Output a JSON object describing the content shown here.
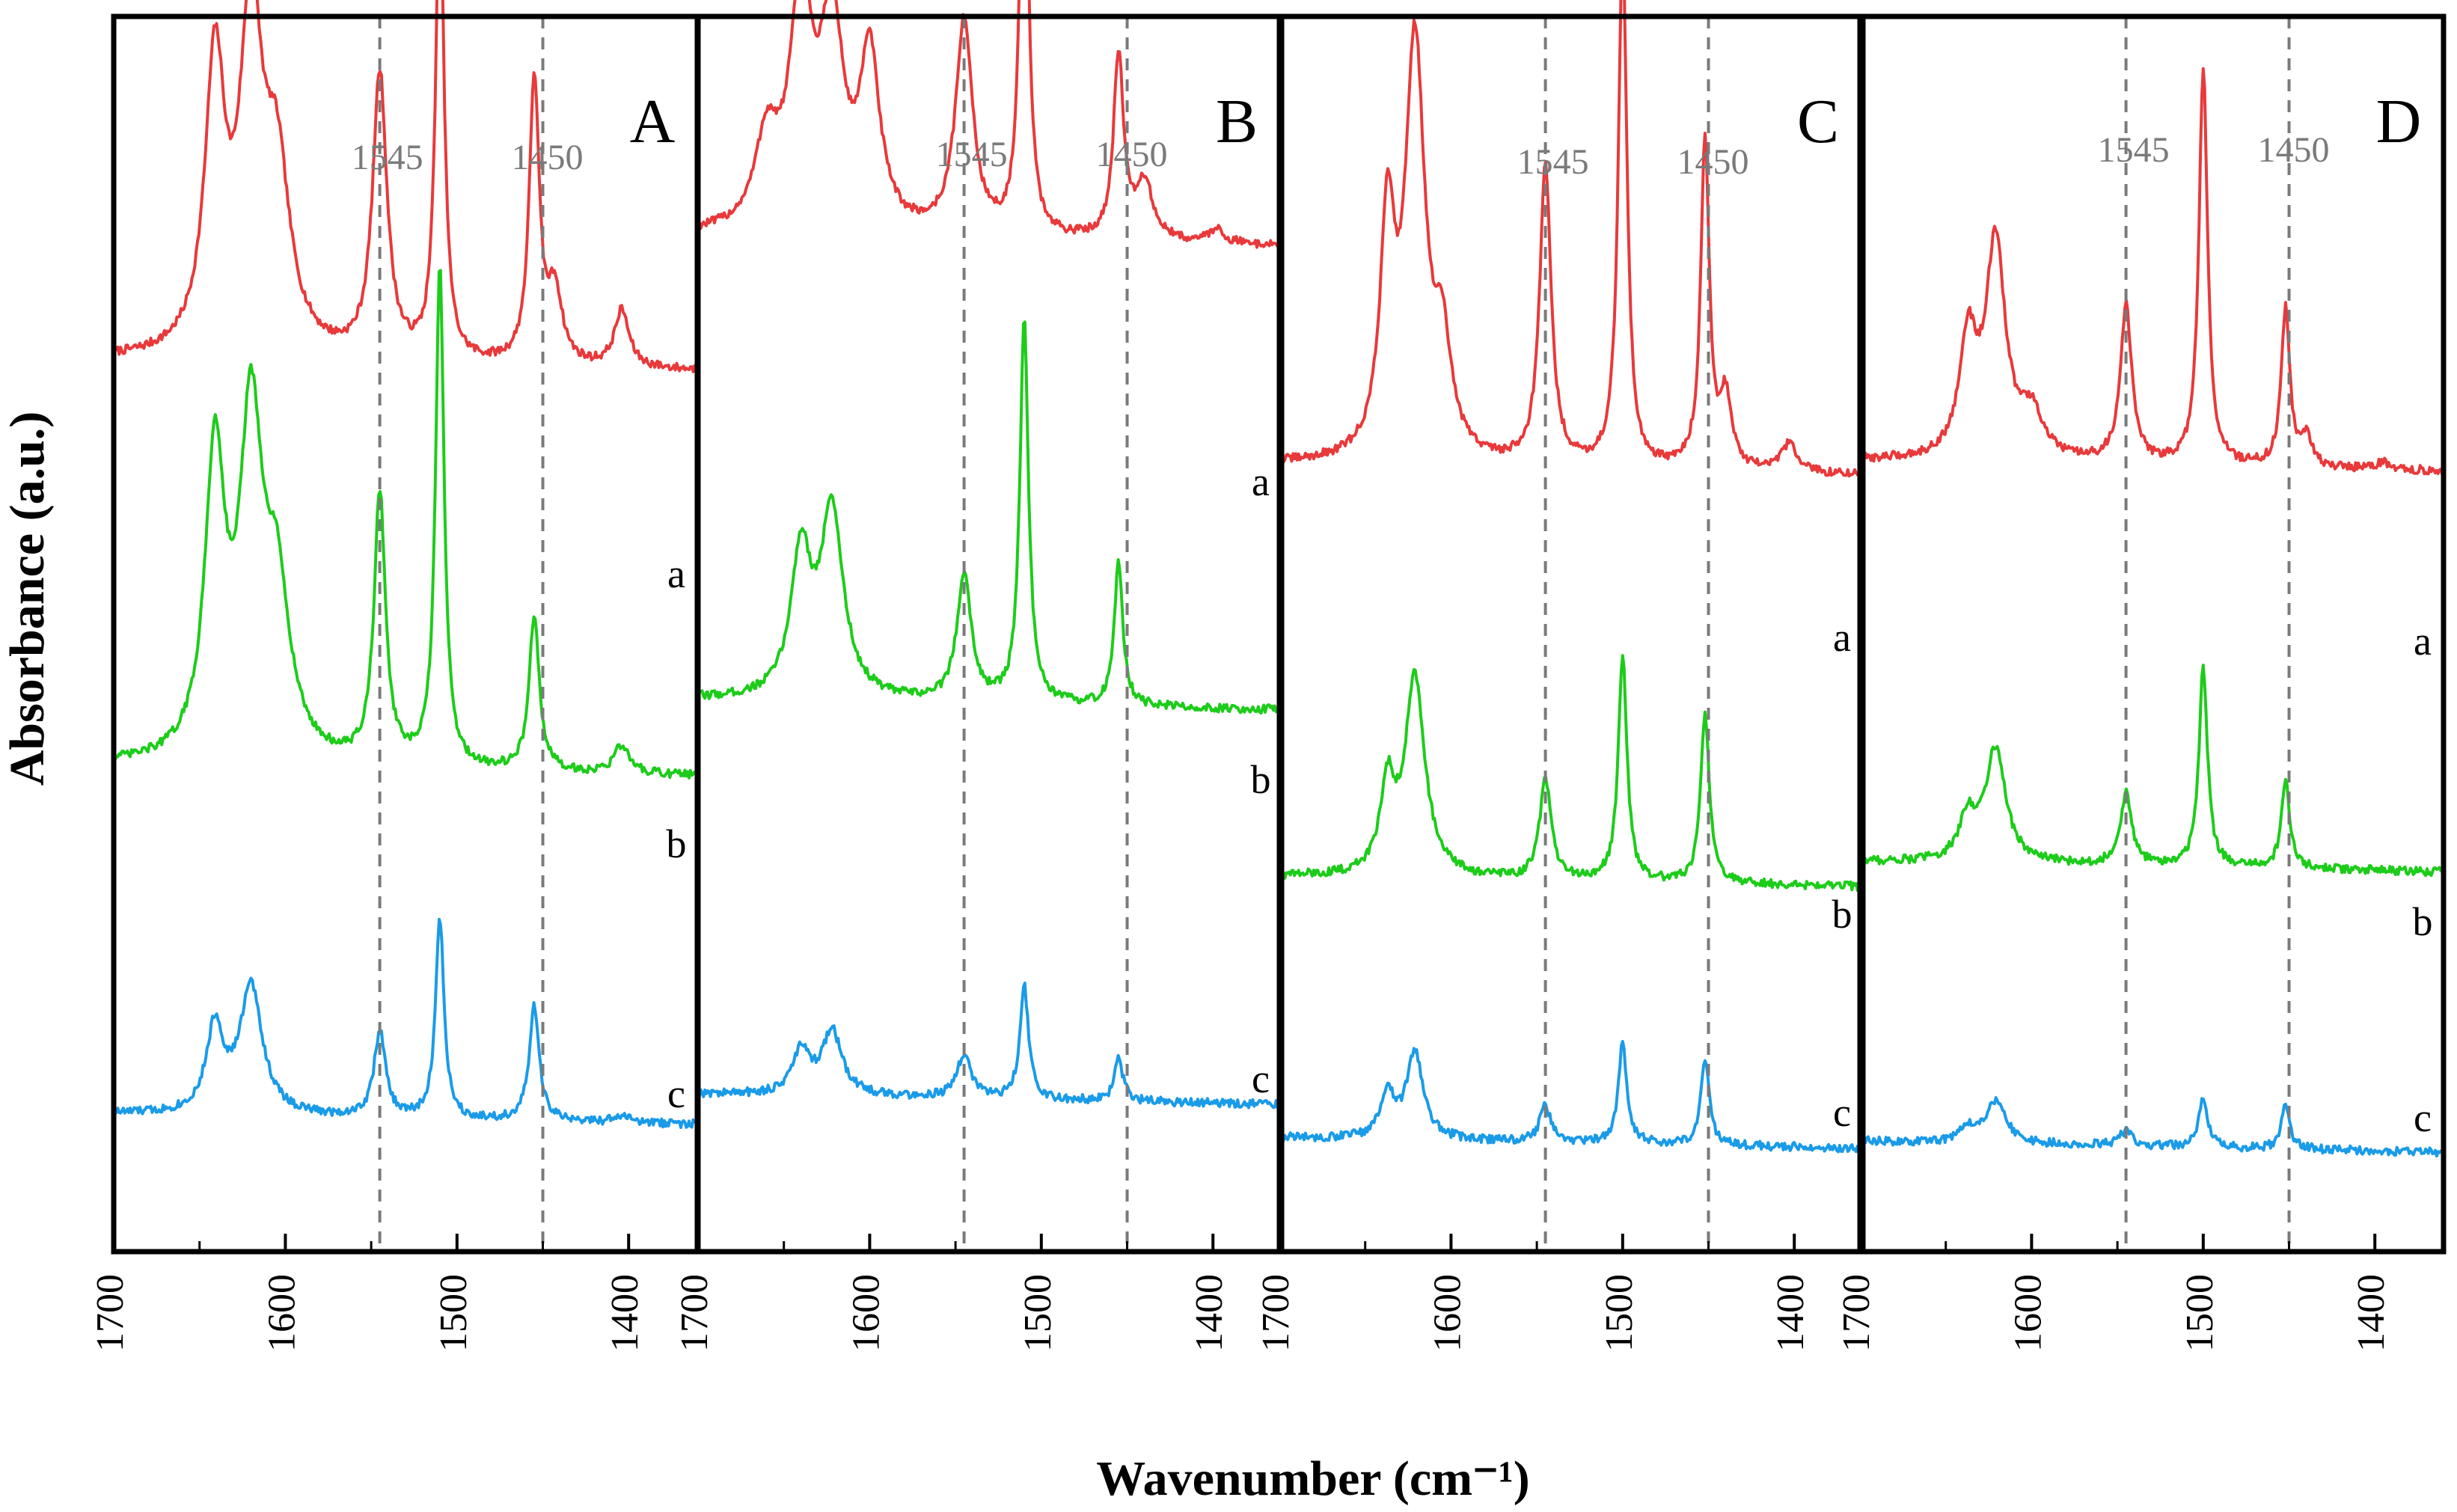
{
  "chart_data": {
    "type": "line",
    "xlabel": "Wavenumber (cm⁻¹)",
    "ylabel": "Absorbance (a.u.)",
    "x_range": [
      1700,
      1360
    ],
    "x_ticks": [
      "1700",
      "1600",
      "1500",
      "1400"
    ],
    "reference_lines": [
      {
        "value": 1545,
        "label": "1545"
      },
      {
        "value": 1450,
        "label": "1450"
      }
    ],
    "series_colors": {
      "a": "#e8393b",
      "b": "#1dcc1a",
      "c": "#1a9be8"
    },
    "reference_color": "#7a7a7a",
    "panels": [
      {
        "label": "A",
        "series": {
          "a": {
            "name": "a",
            "baseline": 1.6,
            "peaks": [
              [
                1641,
                2.0,
                7
              ],
              [
                1620,
                2.3,
                8
              ],
              [
                1605,
                1.2,
                9
              ],
              [
                1545,
                2.0,
                5
              ],
              [
                1510,
                3.3,
                3
              ],
              [
                1455,
                2.0,
                3.5
              ],
              [
                1443,
                0.5,
                5
              ],
              [
                1404,
                0.4,
                5
              ]
            ]
          },
          "b": {
            "name": "b",
            "baseline": 0.75,
            "peaks": [
              [
                1641,
                2.1,
                7
              ],
              [
                1620,
                2.3,
                8
              ],
              [
                1605,
                1.1,
                9
              ],
              [
                1545,
                1.9,
                4
              ],
              [
                1510,
                3.5,
                3
              ],
              [
                1455,
                1.1,
                3.5
              ],
              [
                1404,
                0.2,
                5
              ]
            ]
          },
          "c": {
            "name": "c",
            "baseline": 0.0,
            "peaks": [
              [
                1641,
                0.6,
                6
              ],
              [
                1620,
                0.9,
                8
              ],
              [
                1545,
                0.6,
                4
              ],
              [
                1510,
                1.4,
                3
              ],
              [
                1455,
                0.8,
                3.5
              ],
              [
                1404,
                0.05,
                5
              ]
            ]
          }
        }
      },
      {
        "label": "B",
        "series": {
          "a": {
            "name": "a",
            "baseline": 1.9,
            "peaks": [
              [
                1660,
                0.6,
                8
              ],
              [
                1640,
                1.6,
                8
              ],
              [
                1622,
                1.4,
                8
              ],
              [
                1600,
                1.2,
                7
              ],
              [
                1545,
                1.5,
                6
              ],
              [
                1510,
                3.2,
                3
              ],
              [
                1455,
                1.3,
                3.5
              ],
              [
                1440,
                0.4,
                6
              ],
              [
                1398,
                0.1,
                5
              ]
            ]
          },
          "b": {
            "name": "b",
            "baseline": 0.9,
            "peaks": [
              [
                1640,
                1.0,
                7
              ],
              [
                1622,
                1.3,
                8
              ],
              [
                1545,
                0.9,
                5
              ],
              [
                1510,
                2.7,
                3
              ],
              [
                1455,
                1.0,
                3
              ]
            ]
          },
          "c": {
            "name": "c",
            "baseline": 0.02,
            "peaks": [
              [
                1640,
                0.3,
                6
              ],
              [
                1622,
                0.45,
                7
              ],
              [
                1545,
                0.3,
                5
              ],
              [
                1510,
                0.8,
                3
              ],
              [
                1455,
                0.3,
                3
              ]
            ]
          }
        }
      },
      {
        "label": "C",
        "series": {
          "a": {
            "name": "a",
            "baseline": 1.5,
            "peaks": [
              [
                1637,
                1.6,
                5
              ],
              [
                1621,
                2.9,
                7
              ],
              [
                1605,
                0.7,
                6
              ],
              [
                1545,
                2.1,
                4
              ],
              [
                1500,
                3.7,
                3
              ],
              [
                1452,
                2.3,
                3
              ],
              [
                1440,
                0.5,
                4
              ],
              [
                1403,
                0.2,
                5
              ]
            ]
          },
          "b": {
            "name": "b",
            "baseline": 0.55,
            "peaks": [
              [
                1637,
                0.6,
                5
              ],
              [
                1621,
                1.4,
                7
              ],
              [
                1545,
                0.7,
                4
              ],
              [
                1500,
                1.6,
                3
              ],
              [
                1452,
                1.2,
                3
              ]
            ]
          },
          "c": {
            "name": "c",
            "baseline": 0.0,
            "peaks": [
              [
                1637,
                0.3,
                5
              ],
              [
                1621,
                0.6,
                6
              ],
              [
                1545,
                0.25,
                4
              ],
              [
                1500,
                0.7,
                3
              ],
              [
                1452,
                0.6,
                3
              ]
            ]
          }
        }
      },
      {
        "label": "D",
        "series": {
          "a": {
            "name": "a",
            "baseline": 1.5,
            "peaks": [
              [
                1637,
                0.8,
                6
              ],
              [
                1621,
                1.5,
                7
              ],
              [
                1600,
                0.3,
                8
              ],
              [
                1545,
                1.1,
                4
              ],
              [
                1500,
                2.8,
                3
              ],
              [
                1452,
                1.1,
                3
              ],
              [
                1440,
                0.2,
                4
              ],
              [
                1395,
                0.05,
                5
              ]
            ]
          },
          "b": {
            "name": "b",
            "baseline": 0.55,
            "peaks": [
              [
                1637,
                0.3,
                6
              ],
              [
                1621,
                0.8,
                7
              ],
              [
                1545,
                0.5,
                4
              ],
              [
                1500,
                1.4,
                3
              ],
              [
                1452,
                0.6,
                3
              ]
            ]
          },
          "c": {
            "name": "c",
            "baseline": 0.0,
            "peaks": [
              [
                1637,
                0.1,
                6
              ],
              [
                1621,
                0.3,
                7
              ],
              [
                1545,
                0.1,
                5
              ],
              [
                1500,
                0.35,
                3
              ],
              [
                1452,
                0.3,
                3
              ]
            ]
          }
        }
      }
    ]
  }
}
